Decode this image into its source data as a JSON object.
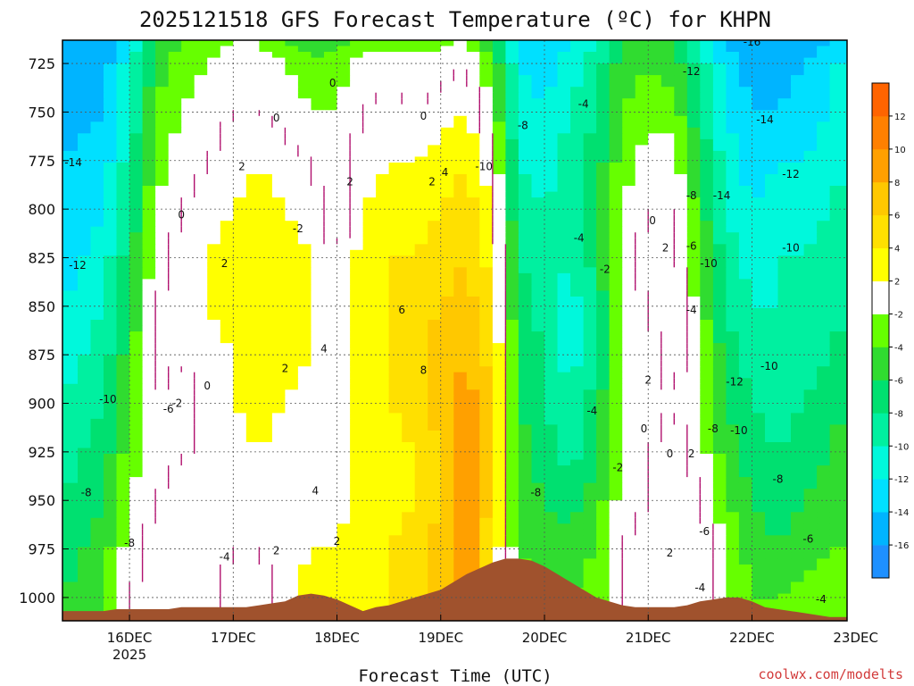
{
  "chart_data": {
    "type": "heatmap",
    "title": "2025121518 GFS Forecast Temperature (ºC) for KHPN",
    "xlabel": "Forecast Time (UTC)",
    "ylabel": "",
    "credit": "coolwx.com/modelts",
    "y_axis": {
      "ticks": [
        725,
        750,
        775,
        800,
        825,
        850,
        875,
        900,
        925,
        950,
        975,
        1000
      ],
      "ylim": [
        1012,
        713
      ],
      "units": "hPa",
      "inverted": true
    },
    "x_axis": {
      "xlim_hours": [
        -9.5,
        172
      ],
      "ticks": [
        {
          "label": "16DEC",
          "sublabel": "2025",
          "hour": 6
        },
        {
          "label": "17DEC",
          "hour": 30
        },
        {
          "label": "18DEC",
          "hour": 54
        },
        {
          "label": "19DEC",
          "hour": 78
        },
        {
          "label": "20DEC",
          "hour": 102
        },
        {
          "label": "21DEC",
          "hour": 126
        },
        {
          "label": "22DEC",
          "hour": 150
        },
        {
          "label": "23DEC",
          "hour": 174
        }
      ]
    },
    "colorbar": {
      "levels": [
        -18,
        -16,
        -14,
        -12,
        -10,
        -8,
        -6,
        -4,
        -2,
        2,
        4,
        6,
        8,
        10,
        12,
        14
      ],
      "tick_labels": [
        "-16",
        "-14",
        "-12",
        "-10",
        "-8",
        "-6",
        "-4",
        "-2",
        "2",
        "4",
        "6",
        "8",
        "10",
        "12"
      ],
      "colors": [
        "#1e90ff",
        "#00b4ff",
        "#00e0ff",
        "#00f8dc",
        "#00f0a0",
        "#00e070",
        "#30dc30",
        "#66ff00",
        "#ffffff",
        "#ffff00",
        "#ffe000",
        "#ffc800",
        "#ffa000",
        "#ff8000",
        "#ff6400"
      ]
    },
    "time_columns_hours": [
      -9.5,
      -6,
      -3,
      0,
      3,
      6,
      9,
      12,
      15,
      18,
      21,
      24,
      27,
      30,
      33,
      36,
      39,
      42,
      45,
      48,
      51,
      54,
      57,
      60,
      63,
      66,
      69,
      72,
      75,
      78,
      81,
      84,
      87,
      90,
      93,
      96,
      99,
      102,
      105,
      108,
      111,
      114,
      117,
      120,
      123,
      126,
      129,
      132,
      135,
      138,
      141,
      144,
      147,
      150,
      153,
      156,
      159,
      162,
      165,
      168,
      172
    ],
    "profile_keys_hours": [
      -9.5,
      0,
      6,
      12,
      18,
      24,
      30,
      36,
      42,
      48,
      54,
      60,
      66,
      72,
      78,
      84,
      90,
      96,
      102,
      108,
      114,
      120,
      126,
      132,
      138,
      144,
      150,
      156,
      162,
      168,
      172
    ],
    "profile_levels_hPa": [
      713,
      725,
      750,
      775,
      800,
      825,
      850,
      875,
      900,
      925,
      950,
      975,
      1000,
      1012
    ],
    "temperature_profiles_C": [
      [
        -16,
        -16,
        -15,
        -14,
        -14,
        -13,
        -12,
        -11,
        -10,
        -9,
        -8,
        -7,
        -6,
        -6
      ],
      [
        -16,
        -15,
        -14,
        -13,
        -12,
        -11,
        -10,
        -9,
        -8,
        -7,
        -6,
        -5,
        -4,
        -4
      ],
      [
        -12,
        -11,
        -10,
        -9,
        -8,
        -7,
        -6,
        -5,
        -4,
        -3,
        -2,
        -1,
        0,
        0
      ],
      [
        -6,
        -5,
        -4,
        -3,
        -2,
        -1,
        0,
        1,
        0,
        -1,
        0,
        1,
        1,
        1
      ],
      [
        -4,
        -3,
        -2,
        -1,
        0,
        1,
        1,
        0,
        -1,
        0,
        1,
        2,
        2,
        2
      ],
      [
        -3,
        -2,
        -1,
        0,
        1,
        2,
        2,
        1,
        1,
        0,
        1,
        1,
        1,
        1
      ],
      [
        -2,
        -1,
        0,
        1,
        2,
        3,
        3,
        2,
        2,
        1,
        1,
        0,
        -1,
        -1
      ],
      [
        -2,
        -1,
        0,
        2,
        3,
        3,
        3,
        3,
        3,
        2,
        1,
        0,
        -1,
        -1
      ],
      [
        -4,
        -2,
        -1,
        1,
        2,
        3,
        3,
        3,
        2,
        1,
        0,
        1,
        1,
        1
      ],
      [
        -6,
        -3,
        -2,
        0,
        1,
        2,
        2,
        2,
        1,
        0,
        1,
        2,
        3,
        3
      ],
      [
        -5,
        -3,
        -2,
        -1,
        -2,
        0,
        1,
        1,
        1,
        1,
        1,
        2,
        2,
        2
      ],
      [
        -3,
        -1,
        0,
        1,
        2,
        3,
        3,
        4,
        3,
        3,
        4,
        3,
        2,
        2
      ],
      [
        -3,
        -1,
        1,
        2,
        3,
        4,
        4,
        4,
        4,
        3,
        3,
        4,
        4,
        4
      ],
      [
        -3,
        -1,
        0,
        2,
        3,
        4,
        5,
        5,
        5,
        4,
        4,
        5,
        5,
        5
      ],
      [
        -3,
        -1,
        1,
        3,
        4,
        5,
        6,
        7,
        7,
        6,
        6,
        7,
        7,
        7
      ],
      [
        -2,
        0,
        2,
        4,
        5,
        6,
        7,
        8,
        9,
        10,
        10,
        10,
        10,
        10
      ],
      [
        -6,
        -4,
        -2,
        0,
        2,
        3,
        4,
        5,
        6,
        6,
        5,
        4,
        3,
        3
      ],
      [
        -14,
        -12,
        -11,
        -10,
        -9,
        -8,
        -7,
        -6,
        -6,
        -5,
        -5,
        -4,
        -3,
        -3
      ],
      [
        -14,
        -13,
        -12,
        -11,
        -10,
        -9,
        -9,
        -8,
        -8,
        -7,
        -6,
        -5,
        -4,
        -4
      ],
      [
        -12,
        -11,
        -10,
        -9,
        -9,
        -10,
        -11,
        -11,
        -10,
        -9,
        -7,
        -5,
        -4,
        -4
      ],
      [
        -10,
        -9,
        -8,
        -7,
        -6,
        -7,
        -8,
        -8,
        -7,
        -6,
        -5,
        -4,
        -3,
        -3
      ],
      [
        -6,
        -5,
        -4,
        -3,
        -2,
        -1,
        -1,
        -2,
        -2,
        -2,
        -1,
        0,
        0,
        0
      ],
      [
        -5,
        -4,
        -3,
        -1,
        0,
        1,
        0,
        -1,
        -1,
        0,
        0,
        1,
        1,
        1
      ],
      [
        -6,
        -5,
        -3,
        -1,
        0,
        1,
        2,
        1,
        0,
        1,
        2,
        2,
        1,
        1
      ],
      [
        -10,
        -9,
        -8,
        -6,
        -5,
        -4,
        -3,
        -2,
        -2,
        -1,
        0,
        2,
        1,
        1
      ],
      [
        -14,
        -13,
        -12,
        -11,
        -10,
        -9,
        -8,
        -7,
        -6,
        -5,
        -4,
        -2,
        -2,
        -2
      ],
      [
        -16,
        -15,
        -14,
        -13,
        -12,
        -11,
        -10,
        -9,
        -8,
        -7,
        -6,
        -5,
        -4,
        -4
      ],
      [
        -16,
        -15,
        -14,
        -12,
        -11,
        -10,
        -10,
        -10,
        -9,
        -8,
        -7,
        -6,
        -4,
        -4
      ],
      [
        -15,
        -14,
        -13,
        -12,
        -11,
        -10,
        -9,
        -9,
        -8,
        -7,
        -6,
        -5,
        -3,
        -3
      ],
      [
        -14,
        -13,
        -12,
        -11,
        -10,
        -9,
        -9,
        -8,
        -7,
        -6,
        -5,
        -4,
        -3,
        -3
      ],
      [
        -12,
        -11,
        -10,
        -10,
        -9,
        -8,
        -8,
        -7,
        -6,
        -5,
        -5,
        -4,
        -3,
        -3
      ]
    ],
    "terrain_surface_pressure_hPa": [
      1007,
      1007,
      1007,
      1007,
      1006,
      1006,
      1006,
      1006,
      1006,
      1005,
      1005,
      1005,
      1005,
      1005,
      1005,
      1004,
      1003,
      1002,
      999,
      998,
      999,
      1001,
      1004,
      1007,
      1005,
      1004,
      1002,
      1000,
      998,
      996,
      992,
      988,
      985,
      982,
      980,
      980,
      981,
      984,
      988,
      992,
      996,
      1000,
      1002,
      1004,
      1005,
      1005,
      1005,
      1005,
      1004,
      1002,
      1001,
      1000,
      1000,
      1002,
      1005,
      1006,
      1007,
      1008,
      1009,
      1010,
      1010
    ],
    "contour_labels": [
      {
        "text": "-14",
        "hour": -7,
        "p": 776
      },
      {
        "text": "-12",
        "hour": -6,
        "p": 829
      },
      {
        "text": "-10",
        "hour": 1,
        "p": 898
      },
      {
        "text": "-8",
        "hour": -4,
        "p": 946
      },
      {
        "text": "-8",
        "hour": 6,
        "p": 972
      },
      {
        "text": "-6",
        "hour": 15,
        "p": 903
      },
      {
        "text": "-4",
        "hour": 28,
        "p": 979
      },
      {
        "text": "-2",
        "hour": 17,
        "p": 900
      },
      {
        "text": "0",
        "hour": 18,
        "p": 803
      },
      {
        "text": "0",
        "hour": 24,
        "p": 891
      },
      {
        "text": "0",
        "hour": 40,
        "p": 753
      },
      {
        "text": "2",
        "hour": 32,
        "p": 778
      },
      {
        "text": "2",
        "hour": 28,
        "p": 828
      },
      {
        "text": "2",
        "hour": 42,
        "p": 882
      },
      {
        "text": "2",
        "hour": 40,
        "p": 976
      },
      {
        "text": "-2",
        "hour": 45,
        "p": 810
      },
      {
        "text": "4",
        "hour": 51,
        "p": 872
      },
      {
        "text": "4",
        "hour": 49,
        "p": 945
      },
      {
        "text": "2",
        "hour": 54,
        "p": 971
      },
      {
        "text": "2",
        "hour": 57,
        "p": 786
      },
      {
        "text": "0",
        "hour": 53,
        "p": 735
      },
      {
        "text": "0",
        "hour": 74,
        "p": 752
      },
      {
        "text": "2",
        "hour": 76,
        "p": 786
      },
      {
        "text": "4",
        "hour": 79,
        "p": 781
      },
      {
        "text": "6",
        "hour": 69,
        "p": 852
      },
      {
        "text": "8",
        "hour": 74,
        "p": 883
      },
      {
        "text": "-10",
        "hour": 88,
        "p": 778
      },
      {
        "text": "-8",
        "hour": 97,
        "p": 757
      },
      {
        "text": "-4",
        "hour": 111,
        "p": 746
      },
      {
        "text": "-4",
        "hour": 110,
        "p": 815
      },
      {
        "text": "-2",
        "hour": 116,
        "p": 831
      },
      {
        "text": "-4",
        "hour": 113,
        "p": 904
      },
      {
        "text": "-8",
        "hour": 100,
        "p": 946
      },
      {
        "text": "-2",
        "hour": 119,
        "p": 933
      },
      {
        "text": "0",
        "hour": 127,
        "p": 806
      },
      {
        "text": "2",
        "hour": 130,
        "p": 820
      },
      {
        "text": "2",
        "hour": 126,
        "p": 888
      },
      {
        "text": "0",
        "hour": 125,
        "p": 913
      },
      {
        "text": "0",
        "hour": 131,
        "p": 926
      },
      {
        "text": "2",
        "hour": 136,
        "p": 926
      },
      {
        "text": "2",
        "hour": 131,
        "p": 977
      },
      {
        "text": "-12",
        "hour": 136,
        "p": 729
      },
      {
        "text": "-8",
        "hour": 136,
        "p": 793
      },
      {
        "text": "-14",
        "hour": 143,
        "p": 793
      },
      {
        "text": "-6",
        "hour": 136,
        "p": 819
      },
      {
        "text": "-10",
        "hour": 140,
        "p": 828
      },
      {
        "text": "-4",
        "hour": 136,
        "p": 852
      },
      {
        "text": "-12",
        "hour": 146,
        "p": 889
      },
      {
        "text": "-10",
        "hour": 154,
        "p": 881
      },
      {
        "text": "-8",
        "hour": 141,
        "p": 913
      },
      {
        "text": "-10",
        "hour": 147,
        "p": 914
      },
      {
        "text": "-6",
        "hour": 139,
        "p": 966
      },
      {
        "text": "-4",
        "hour": 138,
        "p": 995
      },
      {
        "text": "-16",
        "hour": 150,
        "p": 714
      },
      {
        "text": "-14",
        "hour": 153,
        "p": 754
      },
      {
        "text": "-12",
        "hour": 159,
        "p": 782
      },
      {
        "text": "-10",
        "hour": 159,
        "p": 820
      },
      {
        "text": "-8",
        "hour": 156,
        "p": 939
      },
      {
        "text": "-6",
        "hour": 163,
        "p": 970
      },
      {
        "text": "-4",
        "hour": 166,
        "p": 1001
      }
    ]
  },
  "colors": {
    "terrain": "#a0522d",
    "zero_contour": "#b0106e",
    "contour": "#111111",
    "credit": "#d23a3a",
    "axis": "#000000"
  }
}
